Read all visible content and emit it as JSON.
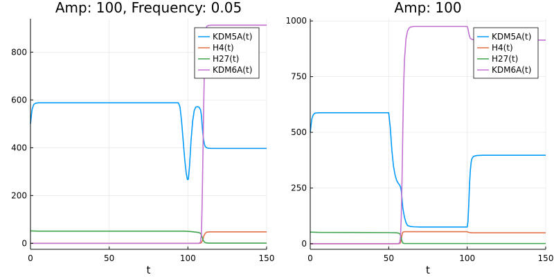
{
  "chart_data": [
    {
      "type": "line",
      "title": "Amp: 100, Frequency: 0.05",
      "xlabel": "t",
      "ylabel": "",
      "xlim": [
        0,
        150
      ],
      "ylim": [
        -25,
        940
      ],
      "xticks": [
        0,
        50,
        100,
        150
      ],
      "yticks": [
        0,
        200,
        400,
        600,
        800
      ],
      "grid": true,
      "legend_position": "top-right",
      "series": [
        {
          "name": "KDM5A(t)",
          "color": "#009af9",
          "x": [
            0,
            1,
            2,
            3,
            5,
            10,
            50,
            94,
            95,
            96,
            97,
            98,
            99,
            99.7,
            100.3,
            101,
            102,
            103,
            104,
            105,
            106,
            107,
            108,
            108.6,
            109.2,
            109.8,
            110.5,
            111,
            112,
            113,
            115,
            120,
            150
          ],
          "y": [
            500,
            560,
            580,
            586,
            588,
            588,
            588,
            588,
            570,
            510,
            430,
            350,
            290,
            267,
            268,
            320,
            430,
            510,
            555,
            570,
            572,
            570,
            560,
            535,
            480,
            440,
            415,
            405,
            400,
            398,
            397,
            397,
            397
          ]
        },
        {
          "name": "H4(t)",
          "color": "#e26f46",
          "x": [
            0,
            50,
            100,
            107,
            108,
            108.5,
            109,
            109.6,
            110.2,
            111,
            112,
            114,
            120,
            150
          ],
          "y": [
            0,
            0,
            0,
            0,
            1,
            3,
            8,
            18,
            32,
            42,
            47,
            48,
            48,
            48
          ]
        },
        {
          "name": "H27(t)",
          "color": "#3da44d",
          "x": [
            0,
            5,
            50,
            90,
            98,
            102,
            105,
            107,
            108,
            108.6,
            109.2,
            109.8,
            110.5,
            111.5,
            113,
            120,
            150
          ],
          "y": [
            52,
            51,
            51,
            51,
            51,
            49,
            47,
            45,
            42,
            35,
            22,
            12,
            5,
            2,
            1,
            1,
            1
          ]
        },
        {
          "name": "KDM6A(t)",
          "color": "#c271d2",
          "x": [
            0,
            50,
            100,
            107,
            108,
            108.6,
            109,
            109.5,
            110,
            110.5,
            111,
            111.5,
            112,
            113,
            115,
            120,
            150
          ],
          "y": [
            0,
            0,
            0,
            0,
            5,
            40,
            150,
            350,
            560,
            740,
            850,
            895,
            908,
            912,
            913,
            913,
            913
          ]
        }
      ]
    },
    {
      "type": "line",
      "title": "Amp: 100",
      "xlabel": "t",
      "ylabel": "",
      "xlim": [
        0,
        150
      ],
      "ylim": [
        -25,
        1010
      ],
      "xticks": [
        0,
        50,
        100,
        150
      ],
      "yticks": [
        0,
        250,
        500,
        750,
        1000
      ],
      "grid": true,
      "legend_position": "top-right",
      "series": [
        {
          "name": "KDM5A(t)",
          "color": "#009af9",
          "x": [
            0,
            1,
            2,
            3,
            5,
            10,
            50,
            51,
            52,
            53,
            54,
            55,
            56,
            57,
            57.5,
            58,
            58.5,
            59,
            60,
            61,
            62,
            64,
            66,
            70,
            80,
            100,
            100.5,
            101,
            101.5,
            102,
            102.5,
            103,
            104,
            106,
            110,
            150
          ],
          "y": [
            500,
            560,
            580,
            586,
            588,
            588,
            588,
            520,
            420,
            350,
            310,
            285,
            272,
            263,
            255,
            238,
            200,
            160,
            120,
            95,
            82,
            77,
            76,
            75,
            75,
            75,
            100,
            180,
            270,
            330,
            365,
            382,
            392,
            396,
            397,
            397
          ]
        },
        {
          "name": "H4(t)",
          "color": "#e26f46",
          "x": [
            0,
            50,
            56,
            57,
            57.5,
            58,
            58.5,
            59,
            60,
            100,
            101,
            103,
            150
          ],
          "y": [
            0,
            0,
            0,
            1,
            5,
            20,
            42,
            52,
            54,
            54,
            51,
            49,
            49
          ]
        },
        {
          "name": "H27(t)",
          "color": "#3da44d",
          "x": [
            0,
            5,
            50,
            55,
            56,
            57,
            57.5,
            58,
            58.5,
            59,
            60,
            70,
            150
          ],
          "y": [
            52,
            51,
            50,
            49,
            48,
            45,
            38,
            25,
            10,
            3,
            1,
            1,
            1
          ]
        },
        {
          "name": "KDM6A(t)",
          "color": "#c271d2",
          "x": [
            0,
            50,
            56,
            57,
            57.5,
            58,
            58.5,
            59,
            59.5,
            60,
            61,
            62,
            63,
            64,
            66,
            70,
            100,
            100.5,
            101,
            101.5,
            102,
            103,
            105,
            110,
            150
          ],
          "y": [
            0,
            0,
            0,
            5,
            30,
            120,
            300,
            520,
            700,
            820,
            920,
            955,
            968,
            973,
            975,
            975,
            975,
            965,
            945,
            930,
            922,
            917,
            915,
            914,
            914
          ]
        }
      ]
    }
  ]
}
